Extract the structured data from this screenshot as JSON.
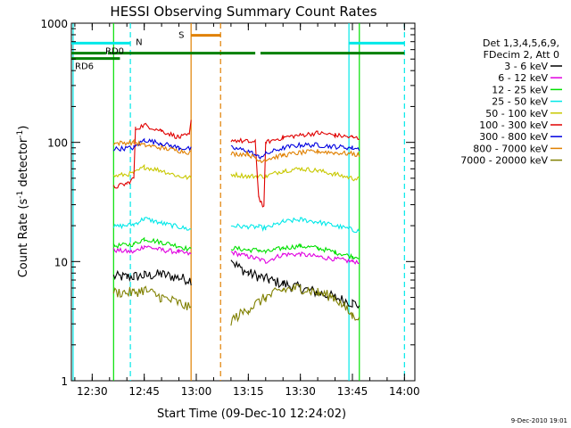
{
  "chart_data": {
    "type": "line",
    "title": "HESSI Observing Summary Count Rates",
    "xlabel": "Start Time (09-Dec-10 12:24:02)",
    "ylabel": "Count Rate (s",
    "ylabel_sup": "-1",
    "ylabel_tail": " detector",
    "ylabel_sup2": "-1",
    "ylabel_close": ")",
    "y_scale": "log",
    "ylim": [
      1,
      1000
    ],
    "xlim": [
      "12:24",
      "14:03"
    ],
    "x_ticks": [
      "12:30",
      "12:45",
      "13:00",
      "13:15",
      "13:30",
      "13:45",
      "14:00"
    ],
    "y_ticks": [
      "1",
      "10",
      "100",
      "1000"
    ],
    "timestamp": "9-Dec-2010 19:01",
    "legend_header": [
      "Det 1,3,4,5,6,9,",
      "FDecim 2, Att 0"
    ],
    "series": [
      {
        "name": "3 - 6 keV",
        "color": "#000000",
        "segments": [
          {
            "start": "12:36:10",
            "points": [
              [
                "12:36:10",
                7.5
              ],
              [
                "12:40",
                7.4
              ],
              [
                "12:42",
                7.5
              ],
              [
                "12:45",
                7.6
              ],
              [
                "12:50",
                7.8
              ],
              [
                "12:55",
                7.3
              ],
              [
                "12:58:30",
                7.0
              ]
            ]
          },
          {
            "start": "13:10",
            "points": [
              [
                "13:10",
                10.5
              ],
              [
                "13:12",
                9.0
              ],
              [
                "13:15",
                8.0
              ],
              [
                "13:18",
                7.5
              ],
              [
                "13:21",
                7.0
              ],
              [
                "13:25",
                6.5
              ],
              [
                "13:30",
                6.0
              ],
              [
                "13:35",
                5.5
              ],
              [
                "13:40",
                5.0
              ],
              [
                "13:45",
                4.5
              ],
              [
                "13:47",
                4.3
              ]
            ]
          }
        ]
      },
      {
        "name": "6 - 12 keV",
        "color": "#e000e0",
        "segments": [
          {
            "start": "12:36:10",
            "points": [
              [
                "12:36:10",
                12.5
              ],
              [
                "12:42",
                12.0
              ],
              [
                "12:45",
                13.5
              ],
              [
                "12:50",
                12.5
              ],
              [
                "12:55",
                12.0
              ],
              [
                "12:58:30",
                11.5
              ]
            ]
          },
          {
            "start": "13:10",
            "points": [
              [
                "13:10",
                12.0
              ],
              [
                "13:15",
                11.0
              ],
              [
                "13:18",
                10.5
              ],
              [
                "13:20",
                10.0
              ],
              [
                "13:25",
                11.5
              ],
              [
                "13:30",
                11.5
              ],
              [
                "13:35",
                11.0
              ],
              [
                "13:40",
                10.5
              ],
              [
                "13:45",
                10.0
              ],
              [
                "13:47",
                10.0
              ]
            ]
          }
        ]
      },
      {
        "name": "12 - 25 keV",
        "color": "#00e000",
        "segments": [
          {
            "start": "12:36:10",
            "points": [
              [
                "12:36:10",
                13.5
              ],
              [
                "12:42",
                14.0
              ],
              [
                "12:45",
                15.5
              ],
              [
                "12:50",
                14.5
              ],
              [
                "12:55",
                13.5
              ],
              [
                "12:58:30",
                12.5
              ]
            ]
          },
          {
            "start": "13:10",
            "points": [
              [
                "13:10",
                13.0
              ],
              [
                "13:15",
                12.5
              ],
              [
                "13:18",
                12.5
              ],
              [
                "13:20",
                12.0
              ],
              [
                "13:25",
                13.0
              ],
              [
                "13:30",
                13.5
              ],
              [
                "13:35",
                13.0
              ],
              [
                "13:40",
                12.0
              ],
              [
                "13:45",
                11.0
              ],
              [
                "13:47",
                11.0
              ]
            ]
          }
        ]
      },
      {
        "name": "25 - 50 keV",
        "color": "#00e8e8",
        "segments": [
          {
            "start": "12:36:10",
            "points": [
              [
                "12:36:10",
                19.5
              ],
              [
                "12:42",
                20.5
              ],
              [
                "12:45",
                23.0
              ],
              [
                "12:50",
                21.0
              ],
              [
                "12:55",
                19.5
              ],
              [
                "12:58:30",
                18.5
              ]
            ]
          },
          {
            "start": "13:10",
            "points": [
              [
                "13:10",
                20.0
              ],
              [
                "13:15",
                19.5
              ],
              [
                "13:18",
                19.5
              ],
              [
                "13:20",
                19.0
              ],
              [
                "13:25",
                21.5
              ],
              [
                "13:30",
                22.5
              ],
              [
                "13:35",
                21.5
              ],
              [
                "13:40",
                20.0
              ],
              [
                "13:45",
                18.5
              ],
              [
                "13:47",
                18.0
              ]
            ]
          }
        ]
      },
      {
        "name": "50 - 100 keV",
        "color": "#c8c800",
        "segments": [
          {
            "start": "12:36:10",
            "points": [
              [
                "12:36:10",
                52
              ],
              [
                "12:42",
                55
              ],
              [
                "12:45",
                62
              ],
              [
                "12:50",
                58
              ],
              [
                "12:55",
                52
              ],
              [
                "12:58:30",
                50
              ]
            ]
          },
          {
            "start": "13:10",
            "points": [
              [
                "13:10",
                54
              ],
              [
                "13:15",
                52
              ],
              [
                "13:18",
                52
              ],
              [
                "13:20",
                52
              ],
              [
                "13:25",
                58
              ],
              [
                "13:30",
                60
              ],
              [
                "13:35",
                58
              ],
              [
                "13:40",
                54
              ],
              [
                "13:45",
                50
              ],
              [
                "13:47",
                49
              ]
            ]
          }
        ]
      },
      {
        "name": "100 - 300 keV",
        "color": "#e00000",
        "segments": [
          {
            "start": "12:36:10",
            "points": [
              [
                "12:36:10",
                42
              ],
              [
                "12:40",
                45
              ],
              [
                "12:42",
                50
              ],
              [
                "12:42:30",
                130
              ],
              [
                "12:45",
                140
              ],
              [
                "12:50",
                125
              ],
              [
                "12:55",
                110
              ],
              [
                "12:58",
                115
              ],
              [
                "12:58:30",
                150
              ]
            ]
          },
          {
            "start": "13:10",
            "points": [
              [
                "13:10",
                105
              ],
              [
                "13:14",
                102
              ],
              [
                "13:17",
                100
              ],
              [
                "13:18",
                35
              ],
              [
                "13:19:30",
                28
              ],
              [
                "13:20",
                100
              ],
              [
                "13:25",
                110
              ],
              [
                "13:30",
                115
              ],
              [
                "13:35",
                120
              ],
              [
                "13:40",
                115
              ],
              [
                "13:45",
                110
              ],
              [
                "13:47",
                108
              ]
            ]
          }
        ]
      },
      {
        "name": "300 - 800 keV",
        "color": "#0000e0",
        "segments": [
          {
            "start": "12:36:10",
            "points": [
              [
                "12:36:10",
                88
              ],
              [
                "12:42",
                90
              ],
              [
                "12:45",
                105
              ],
              [
                "12:50",
                98
              ],
              [
                "12:55",
                90
              ],
              [
                "12:58:30",
                88
              ]
            ]
          },
          {
            "start": "13:10",
            "points": [
              [
                "13:10",
                90
              ],
              [
                "13:15",
                85
              ],
              [
                "13:18",
                75
              ],
              [
                "13:20",
                80
              ],
              [
                "13:25",
                90
              ],
              [
                "13:30",
                95
              ],
              [
                "13:35",
                95
              ],
              [
                "13:40",
                92
              ],
              [
                "13:45",
                90
              ],
              [
                "13:47",
                88
              ]
            ]
          }
        ]
      },
      {
        "name": "800 - 7000 keV",
        "color": "#e08000",
        "segments": [
          {
            "start": "12:36:10",
            "points": [
              [
                "12:36:10",
                98
              ],
              [
                "12:42",
                100
              ],
              [
                "12:45",
                95
              ],
              [
                "12:50",
                90
              ],
              [
                "12:55",
                85
              ],
              [
                "12:58:30",
                82
              ]
            ]
          },
          {
            "start": "13:10",
            "points": [
              [
                "13:10",
                80
              ],
              [
                "13:15",
                80
              ],
              [
                "13:18",
                70
              ],
              [
                "13:20",
                72
              ],
              [
                "13:25",
                78
              ],
              [
                "13:30",
                82
              ],
              [
                "13:35",
                84
              ],
              [
                "13:40",
                82
              ],
              [
                "13:45",
                80
              ],
              [
                "13:47",
                78
              ]
            ]
          }
        ]
      },
      {
        "name": "7000 - 20000 keV",
        "color": "#808000",
        "segments": [
          {
            "start": "12:36:10",
            "points": [
              [
                "12:36:10",
                5.5
              ],
              [
                "12:42",
                5.5
              ],
              [
                "12:45",
                5.8
              ],
              [
                "12:50",
                5.0
              ],
              [
                "12:55",
                4.5
              ],
              [
                "12:58:30",
                4.0
              ]
            ]
          },
          {
            "start": "13:10",
            "points": [
              [
                "13:10",
                3.2
              ],
              [
                "13:15",
                4.0
              ],
              [
                "13:20",
                5.0
              ],
              [
                "13:25",
                5.8
              ],
              [
                "13:30",
                6.0
              ],
              [
                "13:35",
                5.5
              ],
              [
                "13:40",
                5.0
              ],
              [
                "13:45",
                3.5
              ],
              [
                "13:47",
                3.5
              ]
            ]
          }
        ]
      }
    ],
    "flags": [
      {
        "label": "N",
        "color": "#00e8e8",
        "y": 680,
        "segments": [
          [
            "12:24",
            "12:41"
          ],
          [
            "13:44",
            "14:00"
          ]
        ]
      },
      {
        "label": "RD0",
        "color": "#008000",
        "y": 560,
        "segments": [
          [
            "12:24",
            "12:34"
          ],
          [
            "12:34:30",
            "13:17"
          ],
          [
            "13:18:30",
            "14:00"
          ]
        ]
      },
      {
        "label": "RD6",
        "color": "#008000",
        "y": 505,
        "segments": [
          [
            "12:24",
            "12:38"
          ]
        ]
      },
      {
        "label": "S",
        "color": "#e08000",
        "y": 790,
        "segments": [
          [
            "12:58:30",
            "13:07"
          ]
        ]
      }
    ],
    "vlines": [
      {
        "t": "12:24:30",
        "color": "#00e8e8",
        "style": "solid"
      },
      {
        "t": "12:41",
        "color": "#00e8e8",
        "style": "dashed"
      },
      {
        "t": "12:58:30",
        "color": "#e08000",
        "style": "solid"
      },
      {
        "t": "13:07",
        "color": "#e08000",
        "style": "dashed"
      },
      {
        "t": "12:36:10",
        "color": "#00e000",
        "style": "solid"
      },
      {
        "t": "13:44",
        "color": "#00e8e8",
        "style": "solid"
      },
      {
        "t": "13:47",
        "color": "#00e000",
        "style": "solid"
      },
      {
        "t": "14:00",
        "color": "#00e8e8",
        "style": "dashed"
      }
    ]
  }
}
